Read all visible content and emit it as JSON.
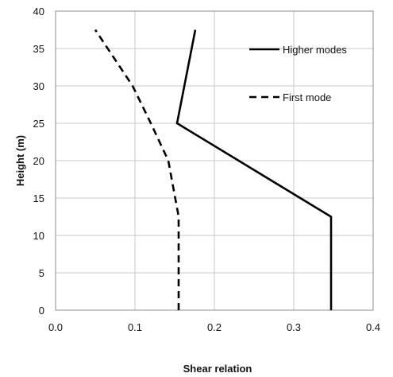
{
  "chart_data": {
    "type": "line",
    "title": "",
    "xlabel": "Shear relation",
    "ylabel": "Height (m)",
    "xlim": [
      0,
      0.4
    ],
    "ylim": [
      0,
      40
    ],
    "xticks": [
      "0.0",
      "0.1",
      "0.2",
      "0.3",
      "0.4"
    ],
    "yticks": [
      "0",
      "5",
      "10",
      "15",
      "20",
      "25",
      "30",
      "35",
      "40"
    ],
    "grid": true,
    "legend_position": "top-right",
    "series": [
      {
        "name": "Higher modes",
        "style": "solid",
        "color": "#000000",
        "points": [
          {
            "x": 0.347,
            "y": 0
          },
          {
            "x": 0.347,
            "y": 12.5
          },
          {
            "x": 0.153,
            "y": 25
          },
          {
            "x": 0.176,
            "y": 37.5
          }
        ]
      },
      {
        "name": "First mode",
        "style": "dashed",
        "color": "#000000",
        "points": [
          {
            "x": 0.155,
            "y": 0
          },
          {
            "x": 0.155,
            "y": 12.5
          },
          {
            "x": 0.142,
            "y": 20
          },
          {
            "x": 0.12,
            "y": 25
          },
          {
            "x": 0.097,
            "y": 30
          },
          {
            "x": 0.05,
            "y": 37.5
          }
        ]
      }
    ]
  }
}
